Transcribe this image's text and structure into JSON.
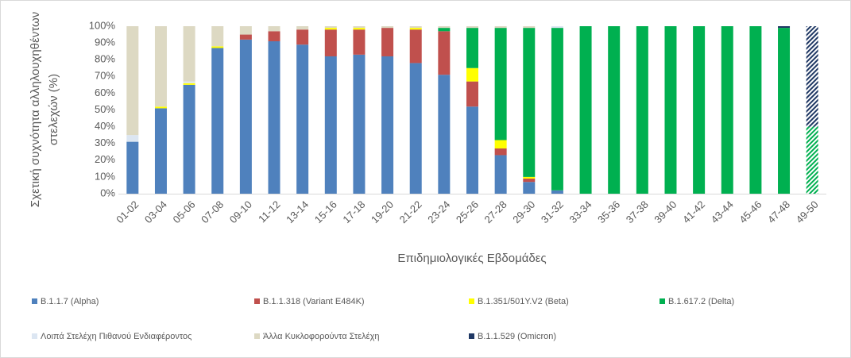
{
  "chart_data": {
    "type": "stacked_bar",
    "y_label_lines": [
      "Σχετική συχνότητα αλληλουχηθέντων",
      "στελεχών (%)"
    ],
    "x_label": "Επιδημιολογικές Εβδομάδες",
    "categories": [
      "01-02",
      "03-04",
      "05-06",
      "07-08",
      "09-10",
      "11-12",
      "13-14",
      "15-16",
      "17-18",
      "19-20",
      "21-22",
      "23-24",
      "25-26",
      "27-28",
      "29-30",
      "31-32",
      "33-34",
      "35-36",
      "37-38",
      "39-40",
      "41-42",
      "43-44",
      "45-46",
      "47-48",
      "49-50"
    ],
    "hatched": [
      false,
      false,
      false,
      false,
      false,
      false,
      false,
      false,
      false,
      false,
      false,
      false,
      false,
      false,
      false,
      false,
      false,
      false,
      false,
      false,
      false,
      false,
      false,
      false,
      true
    ],
    "ylim": [
      0,
      100
    ],
    "yticks": [
      {
        "value": 0,
        "label": "0%"
      },
      {
        "value": 10,
        "label": "10%"
      },
      {
        "value": 20,
        "label": "20%"
      },
      {
        "value": 30,
        "label": "30%"
      },
      {
        "value": 40,
        "label": "40%"
      },
      {
        "value": 50,
        "label": "50%"
      },
      {
        "value": 60,
        "label": "60%"
      },
      {
        "value": 70,
        "label": "70%"
      },
      {
        "value": 80,
        "label": "80%"
      },
      {
        "value": 90,
        "label": "90%"
      },
      {
        "value": 100,
        "label": "100%"
      }
    ],
    "legend": "bottom",
    "series": [
      {
        "name": "B.1.1.7 (Alpha)",
        "color": "#4f81bd",
        "values": [
          31,
          51,
          65,
          87,
          92,
          91,
          89,
          82,
          83,
          82,
          78,
          71,
          52,
          23,
          7,
          2,
          0,
          0,
          0,
          0,
          0,
          0,
          0,
          0,
          0
        ]
      },
      {
        "name": "B.1.1.318 (Variant E484K)",
        "color": "#c0504d",
        "values": [
          0,
          0,
          0,
          0,
          3,
          6,
          9,
          16,
          15,
          17,
          20,
          26,
          15,
          4,
          2,
          0,
          0,
          0,
          0,
          0,
          0,
          0,
          0,
          0,
          0
        ]
      },
      {
        "name": "B.1.351/501Y.V2 (Beta)",
        "color": "#ffff00",
        "values": [
          0,
          1,
          1,
          1,
          0,
          0,
          0,
          1,
          1,
          0,
          1,
          0,
          8,
          5,
          1,
          0,
          0,
          0,
          0,
          0,
          0,
          0,
          0,
          0,
          0
        ]
      },
      {
        "name": "B.1.617.2 (Delta)",
        "color": "#00b050",
        "values": [
          0,
          0,
          0,
          0,
          0,
          0,
          0,
          0,
          0,
          0,
          0,
          2,
          24,
          67,
          89,
          97,
          100,
          100,
          100,
          100,
          100,
          100,
          100,
          99,
          40
        ]
      },
      {
        "name": "Λοιπά Στελέχη Πιθανού Ενδιαφέροντος",
        "color": "#dce6f2",
        "values": [
          4,
          0,
          1,
          0,
          0,
          0,
          0,
          0,
          0,
          0,
          0,
          0,
          0,
          0,
          0,
          1,
          0,
          0,
          0,
          0,
          0,
          0,
          0,
          0,
          0
        ]
      },
      {
        "name": "Άλλα Κυκλοφορούντα Στελέχη",
        "color": "#ddd9c3",
        "values": [
          65,
          48,
          33,
          12,
          5,
          3,
          2,
          1,
          1,
          1,
          1,
          1,
          1,
          1,
          1,
          0,
          0,
          0,
          0,
          0,
          0,
          0,
          0,
          0,
          0
        ]
      },
      {
        "name": "B.1.1.529 (Omicron)",
        "color": "#1f3864",
        "values": [
          0,
          0,
          0,
          0,
          0,
          0,
          0,
          0,
          0,
          0,
          0,
          0,
          0,
          0,
          0,
          0,
          0,
          0,
          0,
          0,
          0,
          0,
          0,
          1,
          60
        ]
      }
    ]
  }
}
